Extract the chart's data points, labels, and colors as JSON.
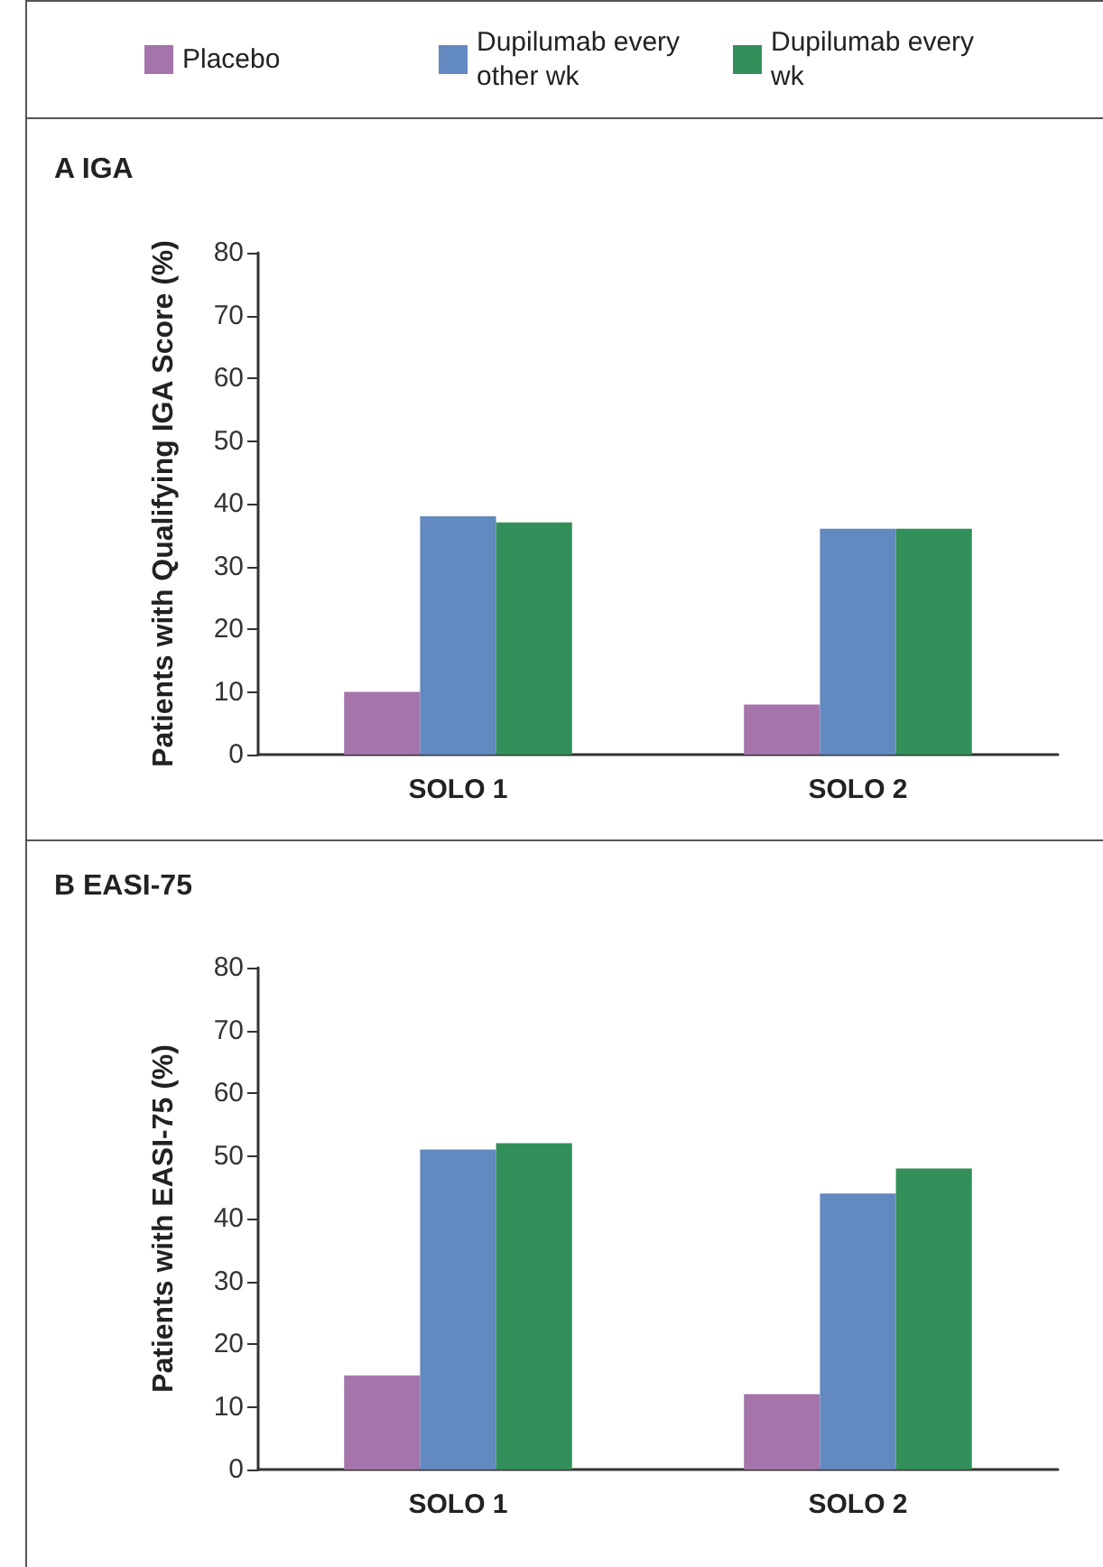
{
  "chart_data": [
    {
      "type": "bar",
      "title": "A IGA",
      "ylabel": "Patients with Qualifying IGA Score (%)",
      "categories": [
        "SOLO 1",
        "SOLO 2"
      ],
      "ylim": [
        0,
        80
      ],
      "yticks": [
        0,
        10,
        20,
        30,
        40,
        50,
        60,
        70,
        80
      ],
      "grid": false,
      "legend": "top",
      "series": [
        {
          "name": "Placebo",
          "color": "#a474ab",
          "values": [
            10,
            8
          ]
        },
        {
          "name": "Dupilumab every other wk",
          "color": "#6289c0",
          "values": [
            38,
            36
          ]
        },
        {
          "name": "Dupilumab every wk",
          "color": "#338f5a",
          "values": [
            37,
            36
          ]
        }
      ]
    },
    {
      "type": "bar",
      "title": "B EASI-75",
      "ylabel": "Patients with EASI-75 (%)",
      "categories": [
        "SOLO 1",
        "SOLO 2"
      ],
      "ylim": [
        0,
        80
      ],
      "yticks": [
        0,
        10,
        20,
        30,
        40,
        50,
        60,
        70,
        80
      ],
      "grid": false,
      "legend": false,
      "series": [
        {
          "color": "#a474ab",
          "values": [
            15,
            12
          ]
        },
        {
          "color": "#6289c0",
          "values": [
            51,
            44
          ]
        },
        {
          "color": "#338f5a",
          "values": [
            52,
            48
          ]
        }
      ]
    }
  ]
}
